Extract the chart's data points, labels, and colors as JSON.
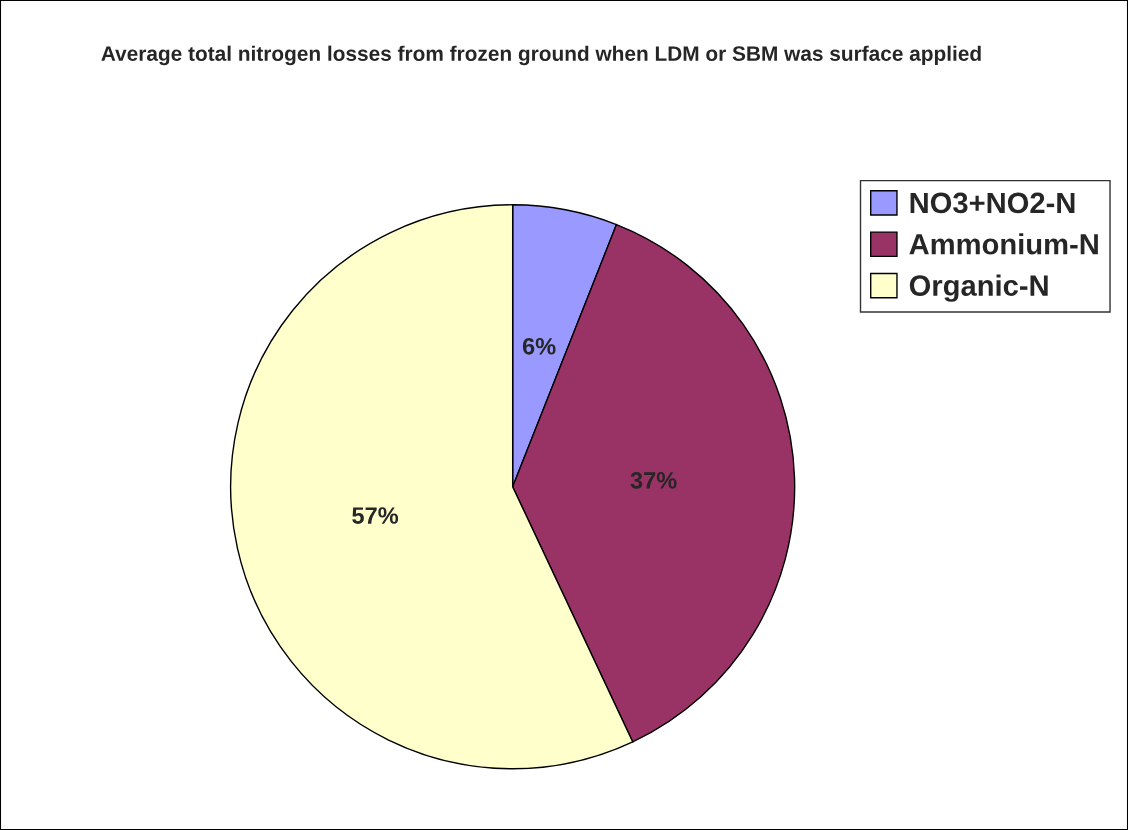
{
  "chart_data": {
    "type": "pie",
    "title": "Average total nitrogen losses from frozen ground when LDM or SBM was surface applied",
    "categories": [
      "NO3+NO2-N",
      "Ammonium-N",
      "Organic-N"
    ],
    "values": [
      6,
      37,
      57
    ],
    "colors": [
      "#9999ff",
      "#993366",
      "#ffffcc"
    ],
    "value_labels": [
      "6%",
      "37%",
      "57%"
    ],
    "legend": "top right"
  }
}
